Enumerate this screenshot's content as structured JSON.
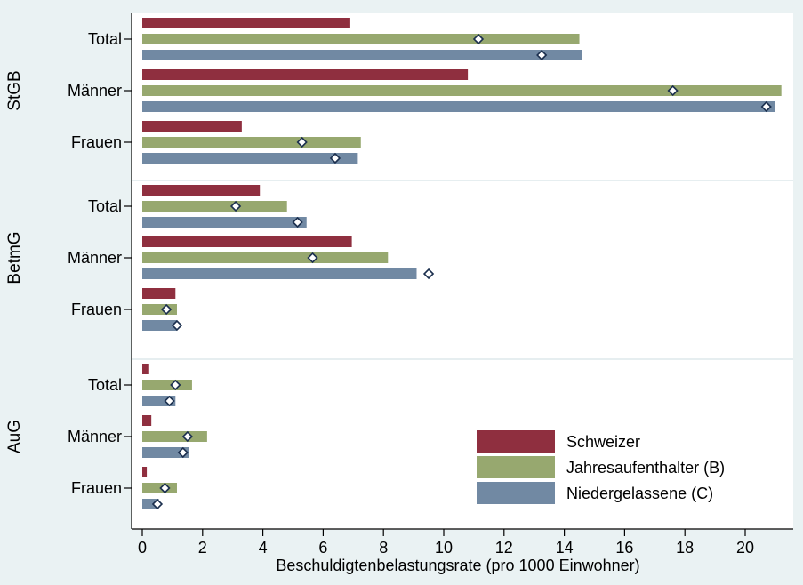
{
  "chart_data": {
    "type": "bar",
    "orientation": "horizontal",
    "xlabel": "Beschuldigtenbelastungsrate (pro 1000 Einwohner)",
    "xlim": [
      0,
      21.3
    ],
    "xticks": [
      "0",
      "2",
      "4",
      "6",
      "8",
      "10",
      "12",
      "14",
      "16",
      "18",
      "20"
    ],
    "grid": false,
    "legend_position": "bottom-right",
    "colors": {
      "background": "#eaf2f3",
      "plot_area": "#ffffff",
      "Schweizer": "#8f2f3f",
      "Jahresaufenthalter (B)": "#97a86f",
      "Niedergelassene (C)": "#7189a3"
    },
    "series": [
      {
        "name": "Schweizer"
      },
      {
        "name": "Jahresaufenthalter (B)"
      },
      {
        "name": "Niedergelassene (C)"
      }
    ],
    "groups": [
      {
        "name": "StGB",
        "rows": [
          {
            "label": "Total",
            "bars": [
              {
                "series": "Schweizer",
                "value": 6.9
              },
              {
                "series": "Jahresaufenthalter (B)",
                "value": 14.5,
                "marker": 11.15
              },
              {
                "series": "Niedergelassene (C)",
                "value": 14.6,
                "marker": 13.25
              }
            ]
          },
          {
            "label": "Männer",
            "bars": [
              {
                "series": "Schweizer",
                "value": 10.8
              },
              {
                "series": "Jahresaufenthalter (B)",
                "value": 21.2,
                "marker": 17.6
              },
              {
                "series": "Niedergelassene (C)",
                "value": 21.0,
                "marker": 20.7
              }
            ]
          },
          {
            "label": "Frauen",
            "bars": [
              {
                "series": "Schweizer",
                "value": 3.3
              },
              {
                "series": "Jahresaufenthalter (B)",
                "value": 7.25,
                "marker": 5.3
              },
              {
                "series": "Niedergelassene (C)",
                "value": 7.15,
                "marker": 6.4
              }
            ]
          }
        ]
      },
      {
        "name": "BetmG",
        "rows": [
          {
            "label": "Total",
            "bars": [
              {
                "series": "Schweizer",
                "value": 3.9
              },
              {
                "series": "Jahresaufenthalter (B)",
                "value": 4.8,
                "marker": 3.1
              },
              {
                "series": "Niedergelassene (C)",
                "value": 5.45,
                "marker": 5.15
              }
            ]
          },
          {
            "label": "Männer",
            "bars": [
              {
                "series": "Schweizer",
                "value": 6.95
              },
              {
                "series": "Jahresaufenthalter (B)",
                "value": 8.15,
                "marker": 5.65
              },
              {
                "series": "Niedergelassene (C)",
                "value": 9.1,
                "marker": 9.5
              }
            ]
          },
          {
            "label": "Frauen",
            "bars": [
              {
                "series": "Schweizer",
                "value": 1.1
              },
              {
                "series": "Jahresaufenthalter (B)",
                "value": 1.15,
                "marker": 0.8
              },
              {
                "series": "Niedergelassene (C)",
                "value": 1.15,
                "marker": 1.15
              }
            ]
          }
        ]
      },
      {
        "name": "AuG",
        "rows": [
          {
            "label": "Total",
            "bars": [
              {
                "series": "Schweizer",
                "value": 0.2
              },
              {
                "series": "Jahresaufenthalter (B)",
                "value": 1.65,
                "marker": 1.1
              },
              {
                "series": "Niedergelassene (C)",
                "value": 1.1,
                "marker": 0.9
              }
            ]
          },
          {
            "label": "Männer",
            "bars": [
              {
                "series": "Schweizer",
                "value": 0.3
              },
              {
                "series": "Jahresaufenthalter (B)",
                "value": 2.15,
                "marker": 1.5
              },
              {
                "series": "Niedergelassene (C)",
                "value": 1.55,
                "marker": 1.35
              }
            ]
          },
          {
            "label": "Frauen",
            "bars": [
              {
                "series": "Schweizer",
                "value": 0.15
              },
              {
                "series": "Jahresaufenthalter (B)",
                "value": 1.15,
                "marker": 0.75
              },
              {
                "series": "Niedergelassene (C)",
                "value": 0.55,
                "marker": 0.5
              }
            ]
          }
        ]
      }
    ]
  }
}
